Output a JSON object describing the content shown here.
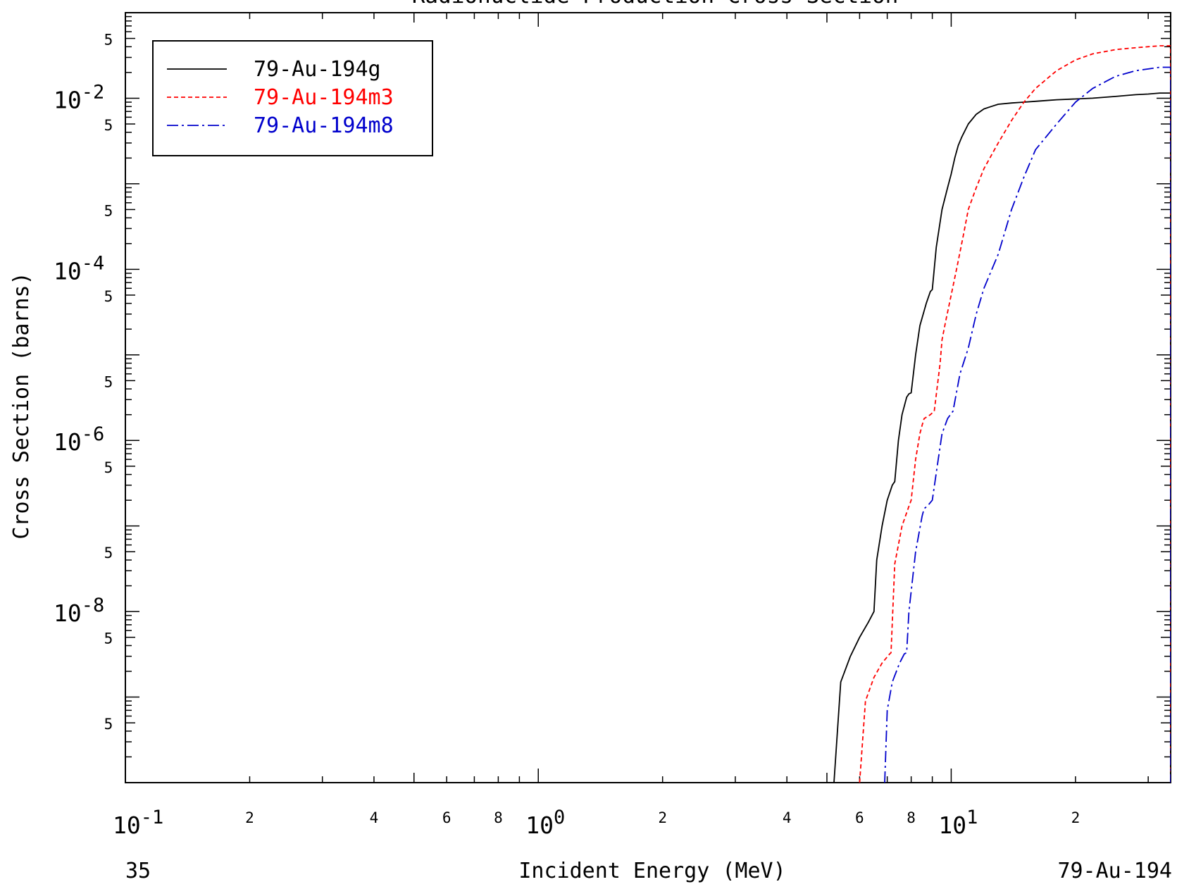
{
  "chart_data": {
    "type": "line",
    "title": "Radionuclide Production Cross Section",
    "xlabel": "Incident Energy (MeV)",
    "ylabel": "Cross Section (barns)",
    "xscale": "log",
    "yscale": "log",
    "xlim": [
      0.1,
      34
    ],
    "ylim": [
      1e-10,
      0.1
    ],
    "x_major_labels": [
      {
        "value": 0.1,
        "base": "10",
        "exp": "-1"
      },
      {
        "value": 1,
        "base": "10",
        "exp": "0"
      },
      {
        "value": 10,
        "base": "10",
        "exp": "1"
      }
    ],
    "x_minor_labels": [
      {
        "value": 0.2,
        "label": "2"
      },
      {
        "value": 0.4,
        "label": "4"
      },
      {
        "value": 0.6,
        "label": "6"
      },
      {
        "value": 0.8,
        "label": "8"
      },
      {
        "value": 2,
        "label": "2"
      },
      {
        "value": 4,
        "label": "4"
      },
      {
        "value": 6,
        "label": "6"
      },
      {
        "value": 8,
        "label": "8"
      },
      {
        "value": 20,
        "label": "2"
      }
    ],
    "y_major_labels": [
      {
        "value": 0.01,
        "base": "10",
        "exp": "-2"
      },
      {
        "value": 0.0001,
        "base": "10",
        "exp": "-4"
      },
      {
        "value": 1e-06,
        "base": "10",
        "exp": "-6"
      },
      {
        "value": 1e-08,
        "base": "10",
        "exp": "-8"
      }
    ],
    "y_minor_labels": [
      {
        "value": 0.05,
        "label": "5"
      },
      {
        "value": 0.005,
        "label": "5"
      },
      {
        "value": 0.0005,
        "label": "5"
      },
      {
        "value": 5e-05,
        "label": "5"
      },
      {
        "value": 5e-06,
        "label": "5"
      },
      {
        "value": 5e-07,
        "label": "5"
      },
      {
        "value": 5e-08,
        "label": "5"
      },
      {
        "value": 5e-09,
        "label": "5"
      },
      {
        "value": 5e-10,
        "label": "5"
      }
    ],
    "legend": {
      "position": "top-left"
    },
    "series": [
      {
        "name": "79-Au-194g",
        "color": "#000000",
        "dash": "none",
        "x": [
          5.2,
          5.4,
          5.7,
          6.0,
          6.3,
          6.5,
          6.6,
          6.8,
          7.0,
          7.2,
          7.3,
          7.45,
          7.6,
          7.8,
          7.9,
          8.0,
          8.2,
          8.4,
          8.7,
          8.9,
          9.0,
          9.2,
          9.5,
          9.8,
          10.0,
          10.2,
          10.4,
          10.6,
          11.0,
          11.5,
          12.0,
          12.5,
          13.0,
          14.0,
          15.0,
          16.0,
          17.0,
          18.0,
          20.0,
          22.0,
          25.0,
          28.0,
          30.0,
          32.0,
          34.0,
          34.0
        ],
        "y": [
          1e-10,
          1.5e-09,
          3e-09,
          5e-09,
          7.5e-09,
          1e-08,
          4e-08,
          1e-07,
          2e-07,
          3e-07,
          3.3e-07,
          1e-06,
          2e-06,
          3.2e-06,
          3.5e-06,
          3.6e-06,
          1e-05,
          2.2e-05,
          4e-05,
          5.5e-05,
          5.8e-05,
          0.00018,
          0.0005,
          0.0009,
          0.0013,
          0.002,
          0.0028,
          0.0035,
          0.005,
          0.0065,
          0.0075,
          0.008,
          0.0085,
          0.0088,
          0.009,
          0.0092,
          0.0094,
          0.0096,
          0.0098,
          0.01,
          0.0105,
          0.011,
          0.0112,
          0.0115,
          0.0115,
          1e-10
        ]
      },
      {
        "name": "79-Au-194m3",
        "color": "#ff0000",
        "dash": "6,4",
        "x": [
          6.0,
          6.2,
          6.5,
          6.8,
          7.1,
          7.15,
          7.3,
          7.6,
          7.9,
          8.0,
          8.2,
          8.4,
          8.5,
          8.6,
          8.9,
          9.1,
          9.4,
          9.5,
          9.7,
          10.0,
          10.3,
          10.7,
          11.0,
          11.5,
          12.0,
          13.0,
          14.0,
          15.0,
          16.0,
          18.0,
          20.0,
          22.0,
          25.0,
          28.0,
          30.0,
          32.0,
          34.0,
          34.0
        ],
        "y": [
          1e-10,
          9e-10,
          1.7e-09,
          2.5e-09,
          3.2e-09,
          3.3e-09,
          3.6e-08,
          1e-07,
          1.7e-07,
          2e-07,
          6e-07,
          1.2e-06,
          1.5e-06,
          1.8e-06,
          2e-06,
          2.2e-06,
          8e-06,
          1.5e-05,
          2.5e-05,
          5e-05,
          0.0001,
          0.00025,
          0.0005,
          0.0009,
          0.0015,
          0.003,
          0.0055,
          0.009,
          0.013,
          0.021,
          0.028,
          0.033,
          0.037,
          0.039,
          0.04,
          0.041,
          0.041,
          1e-10
        ]
      },
      {
        "name": "79-Au-194m8",
        "color": "#0000cc",
        "dash": "16,5,3,5",
        "x": [
          6.9,
          7.0,
          7.2,
          7.5,
          7.7,
          7.8,
          7.9,
          8.2,
          8.5,
          8.6,
          8.75,
          9.0,
          9.3,
          9.5,
          9.8,
          10.1,
          10.5,
          11.0,
          11.5,
          12.0,
          13.0,
          14.0,
          15.0,
          16.0,
          18.0,
          20.0,
          22.0,
          25.0,
          28.0,
          30.0,
          32.0,
          34.0,
          34.0
        ],
        "y": [
          1e-10,
          7e-10,
          1.5e-09,
          2.5e-09,
          3.2e-09,
          3.3e-09,
          1e-08,
          5e-08,
          1.3e-07,
          1.6e-07,
          1.7e-07,
          2e-07,
          6e-07,
          1.2e-06,
          1.8e-06,
          2.2e-06,
          6e-06,
          1.2e-05,
          3e-05,
          6e-05,
          0.00015,
          0.0005,
          0.0012,
          0.0025,
          0.005,
          0.009,
          0.013,
          0.018,
          0.021,
          0.022,
          0.023,
          0.023,
          1e-10
        ]
      }
    ]
  },
  "footer": {
    "left": "35",
    "right": "79-Au-194"
  }
}
